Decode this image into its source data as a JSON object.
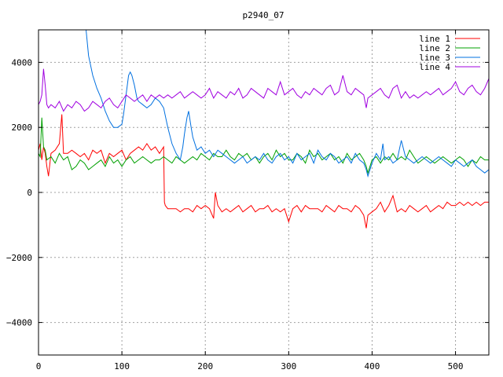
{
  "chart_data": {
    "type": "line",
    "title": "p2940_07",
    "xlabel": "",
    "ylabel": "",
    "xlim": [
      0,
      540
    ],
    "ylim": [
      -5000,
      5000
    ],
    "x_ticks": [
      0,
      100,
      200,
      300,
      400,
      500
    ],
    "y_ticks": [
      -4000,
      -2000,
      0,
      2000,
      4000
    ],
    "x_tick_labels": [
      "0",
      "100",
      "200",
      "300",
      "400",
      "500"
    ],
    "y_tick_labels": [
      "−4000",
      "−2000",
      "0",
      "2000",
      "4000"
    ],
    "grid": true,
    "legend_position": "top-right",
    "series": [
      {
        "name": "line 1",
        "color": "#ff0000",
        "x": [
          0,
          2,
          4,
          6,
          8,
          10,
          12,
          15,
          20,
          25,
          28,
          30,
          35,
          40,
          45,
          50,
          55,
          60,
          65,
          70,
          75,
          80,
          85,
          90,
          95,
          100,
          105,
          110,
          115,
          120,
          125,
          130,
          135,
          140,
          145,
          150,
          151,
          152,
          155,
          160,
          165,
          170,
          175,
          180,
          185,
          190,
          195,
          200,
          205,
          210,
          212,
          215,
          220,
          225,
          230,
          235,
          240,
          245,
          250,
          255,
          260,
          265,
          270,
          275,
          280,
          285,
          290,
          295,
          300,
          305,
          310,
          315,
          320,
          325,
          330,
          335,
          340,
          345,
          350,
          355,
          360,
          365,
          370,
          375,
          380,
          385,
          390,
          393,
          395,
          400,
          405,
          410,
          415,
          420,
          425,
          430,
          435,
          440,
          445,
          450,
          455,
          460,
          465,
          470,
          475,
          480,
          485,
          490,
          495,
          500,
          505,
          510,
          515,
          520,
          525,
          530,
          535,
          540
        ],
        "values": [
          1300,
          1500,
          1000,
          1400,
          1200,
          800,
          500,
          1200,
          1300,
          1500,
          2400,
          1200,
          1200,
          1300,
          1200,
          1100,
          1200,
          1000,
          1300,
          1200,
          1300,
          900,
          1200,
          1100,
          1200,
          1300,
          1000,
          1200,
          1300,
          1400,
          1300,
          1500,
          1300,
          1400,
          1200,
          1400,
          -300,
          -400,
          -500,
          -500,
          -500,
          -600,
          -500,
          -500,
          -600,
          -400,
          -500,
          -400,
          -500,
          -800,
          0,
          -400,
          -600,
          -500,
          -600,
          -500,
          -400,
          -600,
          -500,
          -400,
          -600,
          -500,
          -500,
          -400,
          -600,
          -500,
          -600,
          -500,
          -900,
          -500,
          -400,
          -600,
          -400,
          -500,
          -500,
          -500,
          -600,
          -400,
          -500,
          -600,
          -400,
          -500,
          -500,
          -600,
          -400,
          -500,
          -700,
          -1100,
          -700,
          -600,
          -500,
          -300,
          -600,
          -400,
          -100,
          -600,
          -500,
          -600,
          -400,
          -500,
          -600,
          -500,
          -400,
          -600,
          -500,
          -400,
          -500,
          -300,
          -400,
          -400,
          -300,
          -400,
          -300,
          -400,
          -300,
          -400,
          -300,
          -300
        ]
      },
      {
        "name": "line 2",
        "color": "#00a000",
        "x": [
          0,
          2,
          4,
          6,
          8,
          10,
          15,
          20,
          25,
          30,
          35,
          40,
          45,
          50,
          55,
          60,
          65,
          70,
          75,
          80,
          85,
          90,
          95,
          100,
          105,
          110,
          115,
          120,
          125,
          130,
          135,
          140,
          145,
          150,
          155,
          160,
          165,
          170,
          175,
          180,
          185,
          190,
          195,
          200,
          205,
          210,
          215,
          220,
          225,
          230,
          235,
          240,
          245,
          250,
          255,
          260,
          265,
          270,
          275,
          280,
          285,
          290,
          295,
          300,
          305,
          310,
          315,
          320,
          325,
          330,
          335,
          340,
          345,
          350,
          355,
          360,
          365,
          370,
          375,
          380,
          385,
          390,
          393,
          395,
          400,
          405,
          410,
          415,
          420,
          425,
          430,
          435,
          440,
          445,
          450,
          455,
          460,
          465,
          470,
          475,
          480,
          485,
          490,
          495,
          500,
          505,
          510,
          515,
          520,
          525,
          530,
          535,
          540
        ],
        "values": [
          1200,
          1100,
          2300,
          1400,
          1300,
          1000,
          1100,
          900,
          1200,
          1000,
          1100,
          700,
          800,
          1000,
          900,
          700,
          800,
          900,
          1000,
          800,
          1100,
          900,
          1000,
          800,
          1000,
          1100,
          900,
          1000,
          1100,
          1000,
          900,
          1000,
          1000,
          1100,
          1000,
          900,
          1100,
          1000,
          900,
          1000,
          1100,
          1000,
          1200,
          1100,
          1000,
          1200,
          1100,
          1100,
          1300,
          1100,
          1000,
          1200,
          1100,
          1200,
          1000,
          1100,
          900,
          1100,
          1200,
          1000,
          1300,
          1100,
          1200,
          1000,
          1000,
          1200,
          1100,
          900,
          1300,
          1100,
          1200,
          1000,
          1100,
          1200,
          1000,
          1100,
          900,
          1200,
          1000,
          1100,
          1200,
          1000,
          800,
          600,
          1000,
          1100,
          900,
          1100,
          1000,
          1200,
          1000,
          1100,
          1000,
          1300,
          1100,
          900,
          1000,
          1100,
          1000,
          900,
          1000,
          1100,
          1000,
          900,
          1000,
          1100,
          1000,
          800,
          1000,
          900,
          1100,
          1000,
          1000
        ]
      },
      {
        "name": "line 3",
        "color": "#0070e0",
        "x": [
          57,
          60,
          65,
          70,
          75,
          80,
          85,
          90,
          95,
          100,
          102,
          105,
          108,
          110,
          112,
          115,
          118,
          120,
          125,
          130,
          135,
          140,
          145,
          150,
          155,
          160,
          165,
          170,
          173,
          175,
          178,
          180,
          183,
          185,
          190,
          195,
          200,
          205,
          210,
          215,
          220,
          225,
          230,
          235,
          240,
          245,
          250,
          255,
          260,
          265,
          270,
          275,
          280,
          285,
          290,
          295,
          300,
          305,
          310,
          315,
          320,
          325,
          330,
          335,
          340,
          345,
          350,
          355,
          360,
          365,
          370,
          375,
          380,
          385,
          390,
          393,
          395,
          400,
          405,
          410,
          413,
          415,
          420,
          425,
          430,
          435,
          440,
          445,
          450,
          455,
          460,
          465,
          470,
          475,
          480,
          485,
          490,
          495,
          500,
          505,
          510,
          515,
          520,
          525,
          530,
          535,
          540
        ],
        "values": [
          5000,
          4200,
          3600,
          3200,
          2900,
          2500,
          2200,
          2000,
          2000,
          2100,
          2400,
          3000,
          3600,
          3700,
          3600,
          3300,
          2900,
          2800,
          2700,
          2600,
          2700,
          2900,
          2800,
          2600,
          2000,
          1500,
          1200,
          1000,
          1400,
          1800,
          2300,
          2500,
          2000,
          1700,
          1300,
          1400,
          1200,
          1300,
          1100,
          1300,
          1200,
          1100,
          1000,
          900,
          1000,
          1100,
          900,
          1000,
          1100,
          1000,
          1200,
          1000,
          900,
          1100,
          1200,
          1000,
          1100,
          900,
          1200,
          1000,
          1100,
          1200,
          900,
          1300,
          1100,
          1000,
          1200,
          1100,
          900,
          1000,
          1100,
          900,
          1200,
          1000,
          900,
          700,
          500,
          900,
          1200,
          1000,
          1500,
          1000,
          1100,
          900,
          1000,
          1600,
          1100,
          1000,
          900,
          1000,
          1100,
          1000,
          900,
          1000,
          1100,
          1000,
          900,
          800,
          1000,
          900,
          800,
          900,
          1000,
          800,
          700,
          600,
          700
        ]
      },
      {
        "name": "line 4",
        "color": "#a000e0",
        "x": [
          0,
          2,
          4,
          6,
          8,
          10,
          12,
          15,
          20,
          25,
          30,
          35,
          40,
          45,
          50,
          55,
          60,
          65,
          70,
          75,
          80,
          85,
          90,
          95,
          100,
          105,
          110,
          115,
          120,
          125,
          130,
          135,
          140,
          145,
          150,
          155,
          160,
          165,
          170,
          175,
          180,
          185,
          190,
          195,
          200,
          205,
          210,
          215,
          220,
          225,
          230,
          235,
          240,
          245,
          250,
          255,
          260,
          265,
          270,
          275,
          280,
          285,
          290,
          295,
          300,
          305,
          310,
          315,
          320,
          325,
          330,
          335,
          340,
          345,
          350,
          355,
          360,
          365,
          370,
          375,
          380,
          385,
          390,
          393,
          395,
          400,
          405,
          410,
          415,
          420,
          425,
          430,
          435,
          440,
          445,
          450,
          455,
          460,
          465,
          470,
          475,
          480,
          485,
          490,
          495,
          500,
          505,
          510,
          515,
          520,
          525,
          530,
          535,
          540
        ],
        "values": [
          2700,
          2800,
          3000,
          3800,
          3300,
          2700,
          2600,
          2700,
          2600,
          2800,
          2500,
          2700,
          2600,
          2800,
          2700,
          2500,
          2600,
          2800,
          2700,
          2600,
          2800,
          2900,
          2700,
          2600,
          2800,
          3000,
          2900,
          2800,
          2900,
          3000,
          2800,
          3000,
          2900,
          3000,
          2900,
          3000,
          2900,
          3000,
          3100,
          2900,
          3000,
          3100,
          3000,
          2900,
          3000,
          3200,
          2900,
          3100,
          3000,
          2900,
          3100,
          3000,
          3200,
          2900,
          3000,
          3200,
          3100,
          3000,
          2900,
          3200,
          3100,
          3000,
          3400,
          3000,
          3100,
          3200,
          3000,
          2900,
          3100,
          3000,
          3200,
          3100,
          3000,
          3200,
          3300,
          3000,
          3100,
          3600,
          3100,
          3000,
          3200,
          3100,
          3000,
          2600,
          2900,
          3000,
          3100,
          3200,
          3000,
          2900,
          3200,
          3300,
          2900,
          3100,
          2900,
          3000,
          2900,
          3000,
          3100,
          3000,
          3100,
          3200,
          3000,
          3100,
          3200,
          3400,
          3100,
          3000,
          3200,
          3300,
          3100,
          3000,
          3200,
          3500
        ]
      }
    ]
  }
}
